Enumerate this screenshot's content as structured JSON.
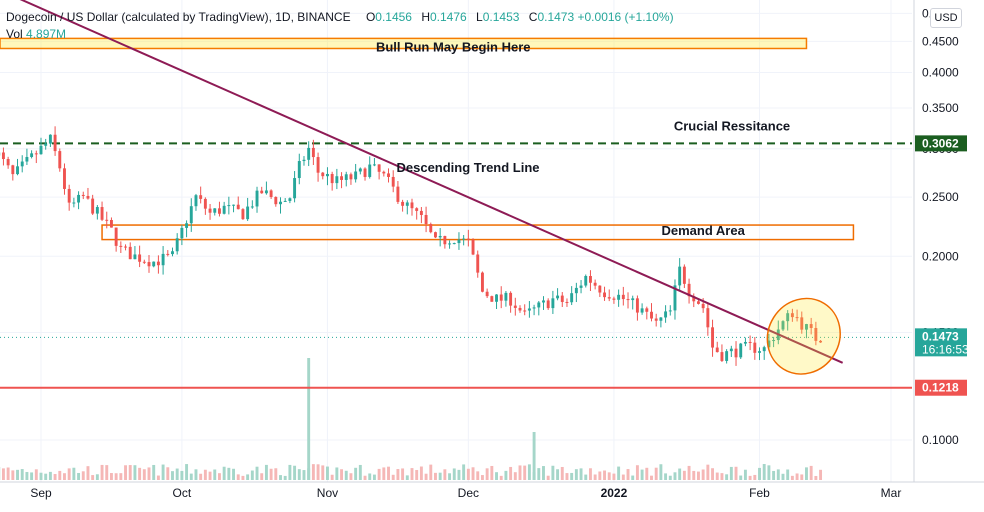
{
  "legend": {
    "title": "Dogecoin / US Dollar (calculated by TradingView), 1D, BINANCE",
    "open_label": "O",
    "open": "0.1456",
    "high_label": "H",
    "high": "0.1476",
    "low_label": "L",
    "low": "0.1453",
    "close_label": "C",
    "close": "0.1473",
    "change": "+0.0016 (+1.10%)",
    "vol_label": "Vol",
    "vol": "4.897M"
  },
  "currency_button": "USD",
  "chart_data": {
    "type": "candlestick",
    "symbol": "DOGEUSD",
    "timeframe": "1D",
    "ylim": [
      0.07,
      0.52
    ],
    "y_scale": "log",
    "yticks": [
      "0.",
      "0.4500",
      "0.4000",
      "0.3500",
      "0.3000",
      "0.2500",
      "0.2000",
      "0.1500",
      "0.1000"
    ],
    "xticks": [
      "Sep",
      "Oct",
      "Nov",
      "Dec",
      "2022",
      "Feb",
      "Mar"
    ],
    "x_range": [
      "2021-08-22",
      "2022-03-06"
    ],
    "price_badges": [
      {
        "value": "0.3062",
        "color": "#1b5e20"
      },
      {
        "value": "0.1473",
        "color": "#26a69a",
        "countdown": "16:16:53"
      },
      {
        "value": "0.1218",
        "color": "#ef5350"
      }
    ],
    "annotations": [
      {
        "text": "Bull Run May Begin Here",
        "type": "zone",
        "y_range": [
          0.438,
          0.455
        ],
        "x_range": [
          "2021-08-22",
          "2022-02-11"
        ],
        "color": "#ffeb3b"
      },
      {
        "text": "Descending Trend Line",
        "type": "trendline",
        "from": {
          "x": "2021-08-27",
          "y": 0.53
        },
        "to": {
          "x": "2022-02-17",
          "y": 0.14
        },
        "color": "#8e1b55"
      },
      {
        "text": "Crucial Ressitance",
        "type": "hline",
        "y": 0.3062,
        "style": "dashed",
        "color": "#1b5e20"
      },
      {
        "text": "Demand Area",
        "type": "zone",
        "y_range": [
          0.213,
          0.225
        ],
        "x_range": [
          "2021-09-14",
          "2022-02-21"
        ],
        "color": "#ef6c00"
      },
      {
        "text": "",
        "type": "hline",
        "y": 0.1218,
        "color": "#ef5350"
      },
      {
        "text": "",
        "type": "ellipse",
        "x_range": [
          "2022-02-05",
          "2022-02-15"
        ],
        "y_range": [
          0.125,
          0.175
        ],
        "color": "#ef6c00"
      }
    ],
    "price_path": [
      [
        "2021-08-22",
        0.3
      ],
      [
        "2021-08-26",
        0.27
      ],
      [
        "2021-08-30",
        0.29
      ],
      [
        "2021-09-03",
        0.31
      ],
      [
        "2021-09-05",
        0.28
      ],
      [
        "2021-09-07",
        0.24
      ],
      [
        "2021-09-10",
        0.25
      ],
      [
        "2021-09-13",
        0.235
      ],
      [
        "2021-09-16",
        0.22
      ],
      [
        "2021-09-18",
        0.205
      ],
      [
        "2021-09-21",
        0.2
      ],
      [
        "2021-09-25",
        0.196
      ],
      [
        "2021-09-29",
        0.2
      ],
      [
        "2021-10-01",
        0.22
      ],
      [
        "2021-10-04",
        0.25
      ],
      [
        "2021-10-07",
        0.235
      ],
      [
        "2021-10-10",
        0.24
      ],
      [
        "2021-10-14",
        0.235
      ],
      [
        "2021-10-18",
        0.255
      ],
      [
        "2021-10-22",
        0.245
      ],
      [
        "2021-10-24",
        0.25
      ],
      [
        "2021-10-26",
        0.28
      ],
      [
        "2021-10-28",
        0.3
      ],
      [
        "2021-10-30",
        0.275
      ],
      [
        "2021-11-03",
        0.265
      ],
      [
        "2021-11-07",
        0.27
      ],
      [
        "2021-11-10",
        0.28
      ],
      [
        "2021-11-13",
        0.27
      ],
      [
        "2021-11-17",
        0.245
      ],
      [
        "2021-11-21",
        0.23
      ],
      [
        "2021-11-24",
        0.21
      ],
      [
        "2021-11-28",
        0.215
      ],
      [
        "2021-12-01",
        0.21
      ],
      [
        "2021-12-04",
        0.175
      ],
      [
        "2021-12-07",
        0.17
      ],
      [
        "2021-12-10",
        0.17
      ],
      [
        "2021-12-13",
        0.16
      ],
      [
        "2021-12-16",
        0.165
      ],
      [
        "2021-12-19",
        0.17
      ],
      [
        "2021-12-22",
        0.168
      ],
      [
        "2021-12-26",
        0.185
      ],
      [
        "2021-12-30",
        0.175
      ],
      [
        "2022-01-02",
        0.172
      ],
      [
        "2022-01-06",
        0.165
      ],
      [
        "2022-01-10",
        0.155
      ],
      [
        "2022-01-13",
        0.162
      ],
      [
        "2022-01-15",
        0.19
      ],
      [
        "2022-01-17",
        0.176
      ],
      [
        "2022-01-20",
        0.165
      ],
      [
        "2022-01-22",
        0.142
      ],
      [
        "2022-01-24",
        0.138
      ],
      [
        "2022-01-27",
        0.14
      ],
      [
        "2022-01-30",
        0.142
      ],
      [
        "2022-02-02",
        0.141
      ],
      [
        "2022-02-05",
        0.152
      ],
      [
        "2022-02-08",
        0.162
      ],
      [
        "2022-02-10",
        0.155
      ],
      [
        "2022-02-13",
        0.147
      ],
      [
        "2022-02-14",
        0.1473
      ]
    ],
    "volume_spikes": [
      {
        "x": "2021-10-28",
        "value": 0.2
      },
      {
        "x": "2021-12-15",
        "value": 0.06
      }
    ]
  }
}
